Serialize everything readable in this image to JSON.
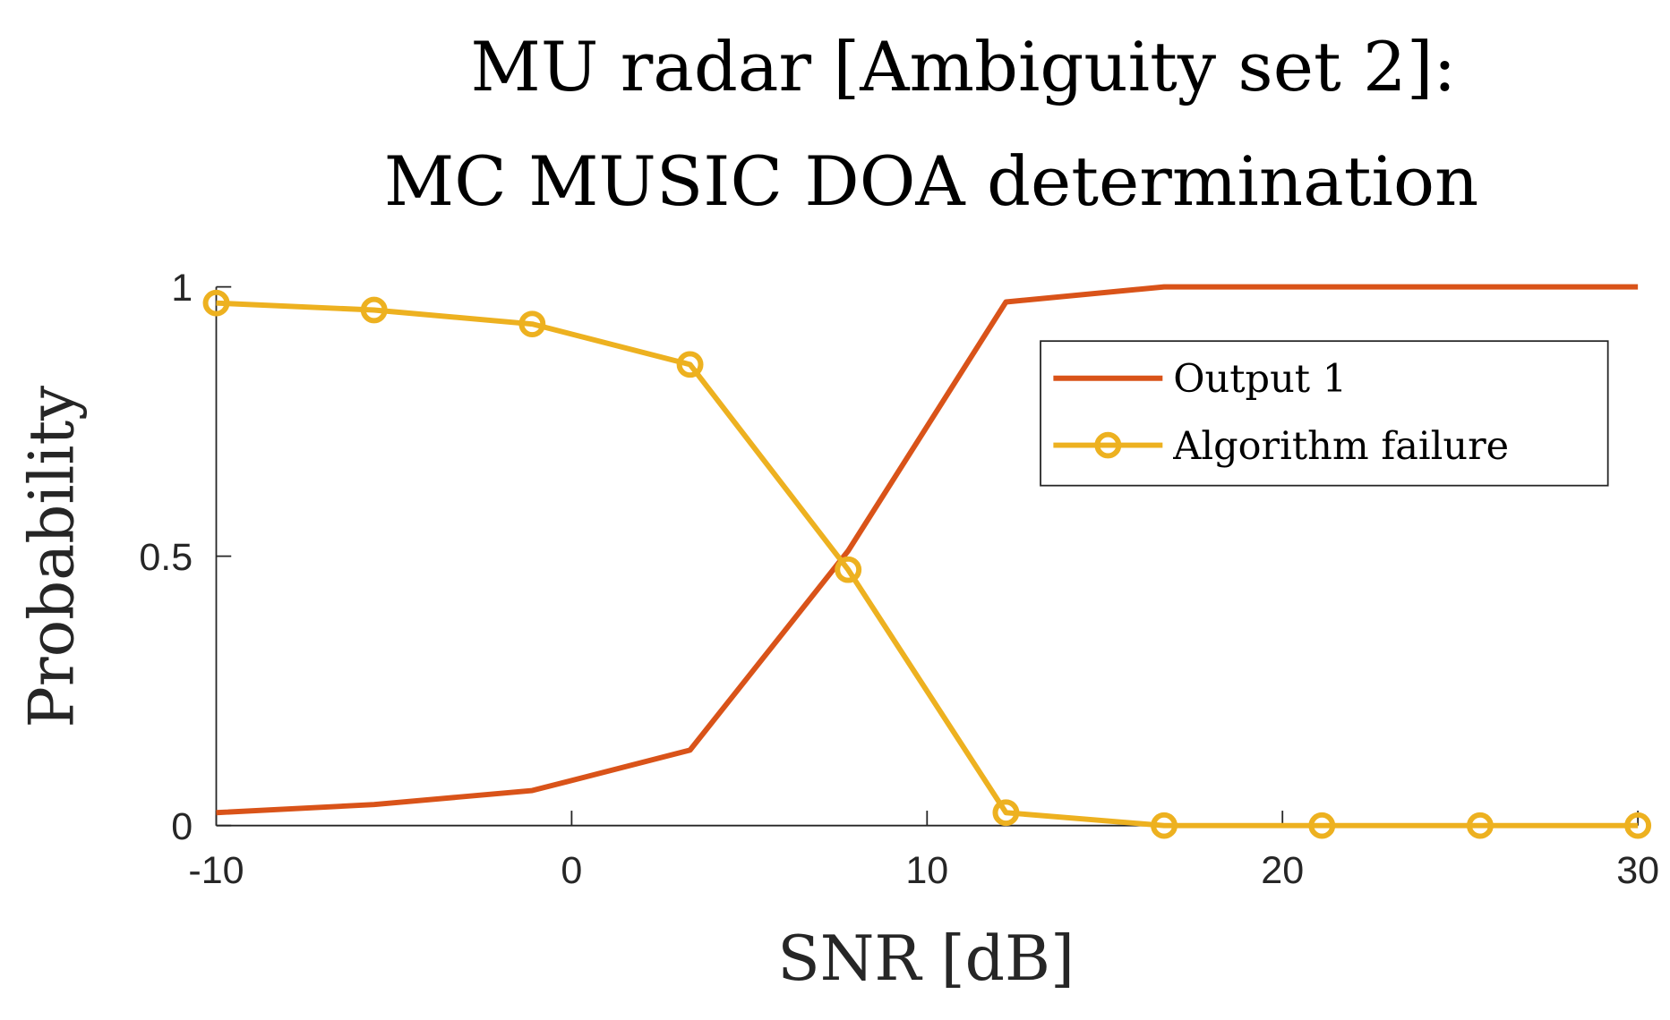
{
  "chart_data": {
    "type": "line",
    "title": [
      "MU radar [Ambiguity set 2]:",
      "MC MUSIC DOA determination"
    ],
    "xlabel": "SNR [dB]",
    "ylabel": "Probability",
    "xlim": [
      -10,
      30
    ],
    "ylim": [
      0,
      1
    ],
    "xticks": [
      "-10",
      "0",
      "10",
      "20",
      "30"
    ],
    "xtick_values": [
      -10,
      0,
      10,
      20,
      30
    ],
    "yticks": [
      "0",
      "0.5",
      "1"
    ],
    "ytick_values": [
      0,
      0.5,
      1
    ],
    "grid": false,
    "legend_position": "top-right",
    "x": [
      -10,
      -5.56,
      -1.11,
      3.33,
      7.78,
      12.22,
      16.67,
      21.11,
      25.56,
      30
    ],
    "series": [
      {
        "name": "Output 1",
        "color": "#D95319",
        "marker": "none",
        "values": [
          0.024,
          0.039,
          0.065,
          0.14,
          0.51,
          0.972,
          1,
          1,
          1,
          1
        ]
      },
      {
        "name": "Algorithm failure",
        "color": "#EDB120",
        "marker": "circle",
        "values": [
          0.97,
          0.957,
          0.931,
          0.856,
          0.475,
          0.024,
          0,
          0,
          0,
          0
        ]
      }
    ]
  }
}
